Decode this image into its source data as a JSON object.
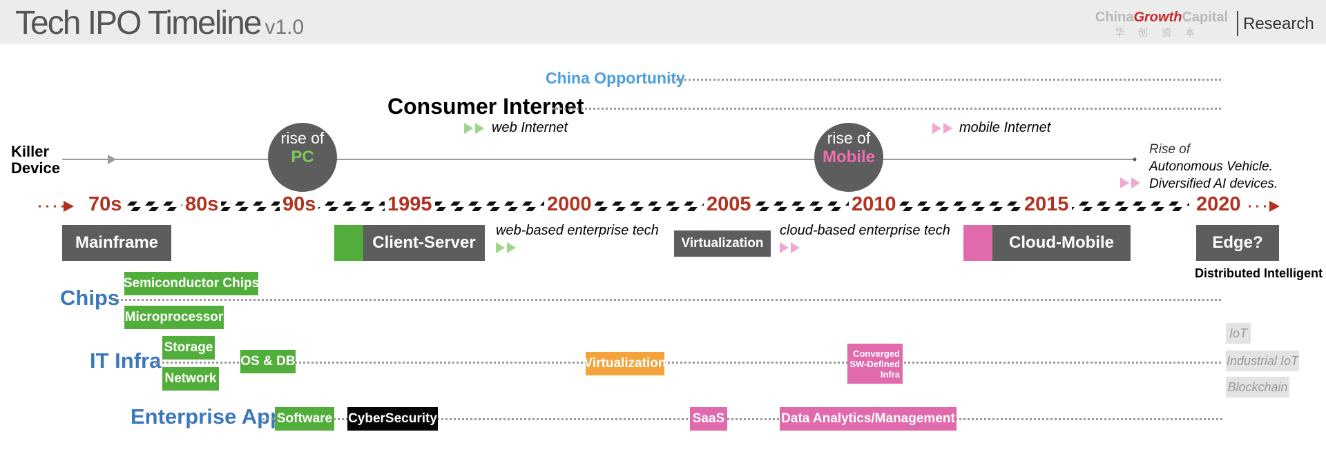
{
  "header": {
    "title": "Tech IPO Timeline",
    "version": "v1.0",
    "logo_part1": "China",
    "logo_part2": "Growth",
    "logo_part3": "Capital",
    "logo_cn": "华创资本",
    "research": "Research"
  },
  "tracks": {
    "china_opportunity": "China Opportunity",
    "consumer_internet": "Consumer Internet",
    "web_internet": "web Internet",
    "mobile_internet": "mobile Internet"
  },
  "killer_device": {
    "label_line1": "Killer",
    "label_line2": "Device",
    "pc_rise": "rise of",
    "pc_name": "PC",
    "mobile_rise": "rise of",
    "mobile_name": "Mobile",
    "future_line1": "Rise of",
    "future_line2": "Autonomous Vehicle.",
    "future_line3": "Diversified AI devices."
  },
  "years": [
    "70s",
    "80s",
    "90s",
    "1995",
    "2000",
    "2005",
    "2010",
    "2015",
    "2020"
  ],
  "eras": {
    "mainframe": "Mainframe",
    "client_server": "Client-Server",
    "web_enterprise": "web-based enterprise tech",
    "virtualization": "Virtualization",
    "cloud_enterprise": "cloud-based enterprise tech",
    "cloud_mobile": "Cloud-Mobile",
    "edge": "Edge?",
    "distributed": "Distributed Intelligent"
  },
  "chips": {
    "label": "Chips",
    "semiconductor": "Semiconductor Chips",
    "microprocessor": "Microprocessor"
  },
  "it_infra": {
    "label": "IT Infra",
    "storage": "Storage",
    "network": "Network",
    "os_db": "OS & DB",
    "virtualization": "Virtualization",
    "converged_line1": "Converged",
    "converged_line2": "SW-Defined",
    "converged_line3": "Infra",
    "iot": "IoT",
    "industrial_iot": "Industrial IoT",
    "blockchain": "Blockchain"
  },
  "enterprise_app": {
    "label": "Enterprise App",
    "software": "Software",
    "cybersecurity": "CyberSecurity",
    "saas": "SaaS",
    "data_analytics": "Data Analytics/Management"
  },
  "colors": {
    "green": "#52ae3a",
    "pink": "#e06aac",
    "orange": "#f4a23a",
    "year_red": "#b0321f",
    "category_blue": "#3a78bc",
    "china_blue": "#4a9ee0"
  }
}
